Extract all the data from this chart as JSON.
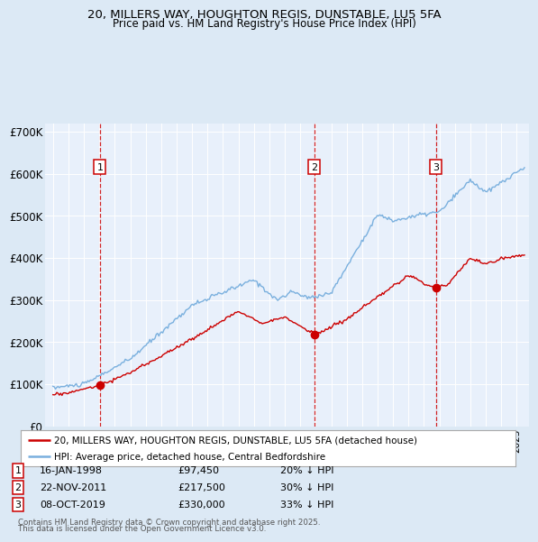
{
  "title_line1": "20, MILLERS WAY, HOUGHTON REGIS, DUNSTABLE, LU5 5FA",
  "title_line2": "Price paid vs. HM Land Registry's House Price Index (HPI)",
  "bg_color": "#dce9f5",
  "plot_bg_color": "#e8f0fb",
  "hpi_color": "#7ab0de",
  "price_color": "#cc0000",
  "sale_marker_color": "#cc0000",
  "dashed_line_color": "#cc0000",
  "ylim": [
    0,
    720000
  ],
  "yticks": [
    0,
    100000,
    200000,
    300000,
    400000,
    500000,
    600000,
    700000
  ],
  "ytick_labels": [
    "£0",
    "£100K",
    "£200K",
    "£300K",
    "£400K",
    "£500K",
    "£600K",
    "£700K"
  ],
  "sales": [
    {
      "num": 1,
      "date": "16-JAN-1998",
      "price": 97450,
      "pct": "20%",
      "x_year": 1998.04
    },
    {
      "num": 2,
      "date": "22-NOV-2011",
      "price": 217500,
      "pct": "30%",
      "x_year": 2011.89
    },
    {
      "num": 3,
      "date": "08-OCT-2019",
      "price": 330000,
      "pct": "33%",
      "x_year": 2019.77
    }
  ],
  "legend_line1": "20, MILLERS WAY, HOUGHTON REGIS, DUNSTABLE, LU5 5FA (detached house)",
  "legend_line2": "HPI: Average price, detached house, Central Bedfordshire",
  "footer1": "Contains HM Land Registry data © Crown copyright and database right 2025.",
  "footer2": "This data is licensed under the Open Government Licence v3.0.",
  "xlim_left": 1994.5,
  "xlim_right": 2025.8
}
